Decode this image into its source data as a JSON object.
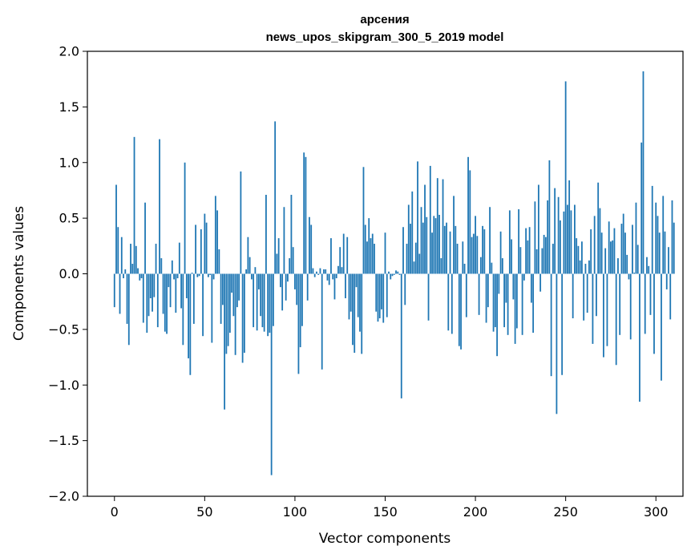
{
  "chart_data": {
    "type": "bar",
    "title": "арсения",
    "subtitle": "news_upos_skipgram_300_5_2019 model",
    "xlabel": "Vector components",
    "ylabel": "Components values",
    "xlim": [
      -15,
      315
    ],
    "ylim": [
      -2.0,
      2.0
    ],
    "xticks": [
      0,
      50,
      100,
      150,
      200,
      250,
      300
    ],
    "yticks": [
      -2.0,
      -1.5,
      -1.0,
      -0.5,
      0.0,
      0.5,
      1.0,
      1.5,
      2.0
    ],
    "xtick_labels": [
      "0",
      "50",
      "100",
      "150",
      "200",
      "250",
      "300"
    ],
    "ytick_labels": [
      "−2.0",
      "−1.5",
      "−1.0",
      "−0.5",
      "0.0",
      "0.5",
      "1.0",
      "1.5",
      "2.0"
    ],
    "bar_color": "#1f77b4",
    "grid": false,
    "x_start": 0,
    "values": [
      -0.3,
      0.8,
      0.42,
      -0.36,
      0.33,
      -0.04,
      0.04,
      -0.45,
      -0.64,
      0.27,
      0.09,
      1.23,
      0.25,
      0.05,
      -0.06,
      -0.04,
      -0.44,
      0.64,
      -0.53,
      -0.38,
      -0.22,
      -0.34,
      -0.21,
      0.27,
      -0.48,
      1.21,
      0.14,
      -0.36,
      -0.52,
      -0.54,
      -0.12,
      -0.3,
      0.12,
      -0.05,
      -0.35,
      -0.04,
      0.28,
      -0.31,
      -0.64,
      1.0,
      -0.22,
      -0.76,
      -0.91,
      0.01,
      -0.45,
      0.44,
      -0.03,
      -0.02,
      0.4,
      -0.56,
      0.54,
      0.46,
      -0.03,
      -0.01,
      -0.62,
      -0.05,
      0.7,
      0.57,
      0.22,
      -0.45,
      -0.28,
      -1.22,
      -0.72,
      -0.65,
      -0.53,
      -0.17,
      -0.38,
      -0.73,
      -0.3,
      -0.24,
      0.92,
      -0.8,
      -0.71,
      0.04,
      0.33,
      0.15,
      -0.05,
      -0.48,
      0.06,
      -0.51,
      -0.14,
      -0.38,
      -0.48,
      -0.52,
      0.71,
      -0.56,
      -0.53,
      -1.81,
      -0.47,
      1.37,
      0.18,
      0.32,
      -0.12,
      -0.33,
      0.6,
      -0.24,
      -0.07,
      0.14,
      0.71,
      0.24,
      -0.14,
      -0.28,
      -0.9,
      -0.66,
      -0.47,
      1.09,
      1.05,
      -0.24,
      0.51,
      0.44,
      0.05,
      -0.03,
      0.02,
      -0.01,
      0.05,
      -0.86,
      0.04,
      0.04,
      -0.06,
      -0.1,
      0.32,
      -0.05,
      -0.23,
      -0.04,
      0.07,
      0.24,
      0.06,
      0.36,
      -0.22,
      0.33,
      -0.41,
      -0.34,
      -0.64,
      -0.71,
      -0.12,
      -0.39,
      -0.52,
      -0.72,
      0.96,
      0.44,
      0.29,
      0.5,
      0.32,
      0.36,
      0.27,
      -0.34,
      -0.43,
      -0.4,
      -0.32,
      -0.44,
      0.37,
      -0.39,
      0.02,
      -0.05,
      -0.02,
      -0.01,
      0.03,
      0.02,
      -0.01,
      -1.12,
      0.42,
      -0.28,
      0.27,
      0.62,
      0.45,
      0.74,
      0.11,
      0.28,
      1.01,
      0.18,
      0.6,
      0.46,
      0.8,
      0.51,
      -0.42,
      0.97,
      0.37,
      0.52,
      0.5,
      0.86,
      0.53,
      0.14,
      0.85,
      0.43,
      0.46,
      -0.51,
      0.38,
      -0.54,
      0.7,
      0.43,
      0.27,
      -0.65,
      -0.68,
      0.29,
      0.09,
      -0.39,
      1.05,
      0.93,
      0.33,
      0.36,
      0.52,
      0.34,
      -0.37,
      0.15,
      0.43,
      0.4,
      -0.44,
      -0.3,
      0.6,
      0.1,
      -0.52,
      -0.48,
      -0.74,
      -0.18,
      0.38,
      0.14,
      -0.48,
      -0.26,
      -0.55,
      0.57,
      0.31,
      -0.23,
      -0.63,
      -0.49,
      0.58,
      0.24,
      -0.55,
      -0.06,
      0.41,
      0.3,
      0.42,
      -0.26,
      -0.53,
      0.65,
      0.22,
      0.8,
      -0.16,
      0.23,
      0.35,
      0.33,
      0.66,
      1.02,
      -0.92,
      0.27,
      0.77,
      -1.26,
      0.69,
      0.48,
      -0.91,
      0.56,
      1.73,
      0.62,
      0.84,
      0.57,
      -0.4,
      0.62,
      0.32,
      0.25,
      0.12,
      0.29,
      -0.42,
      0.09,
      -0.35,
      0.12,
      0.4,
      -0.63,
      0.52,
      -0.38,
      0.82,
      0.59,
      0.37,
      -0.75,
      0.23,
      -0.65,
      0.47,
      0.29,
      0.3,
      0.41,
      -0.82,
      0.14,
      -0.55,
      0.45,
      0.54,
      0.37,
      0.17,
      -0.05,
      -0.59,
      0.44,
      0.01,
      0.64,
      0.26,
      -1.15,
      1.18,
      1.82,
      -0.54,
      0.15,
      0.07,
      -0.37,
      0.79,
      -0.72,
      0.64,
      0.52,
      0.37,
      -0.96,
      0.7,
      0.38,
      -0.14,
      0.24,
      -0.41,
      0.66,
      0.46
    ]
  }
}
